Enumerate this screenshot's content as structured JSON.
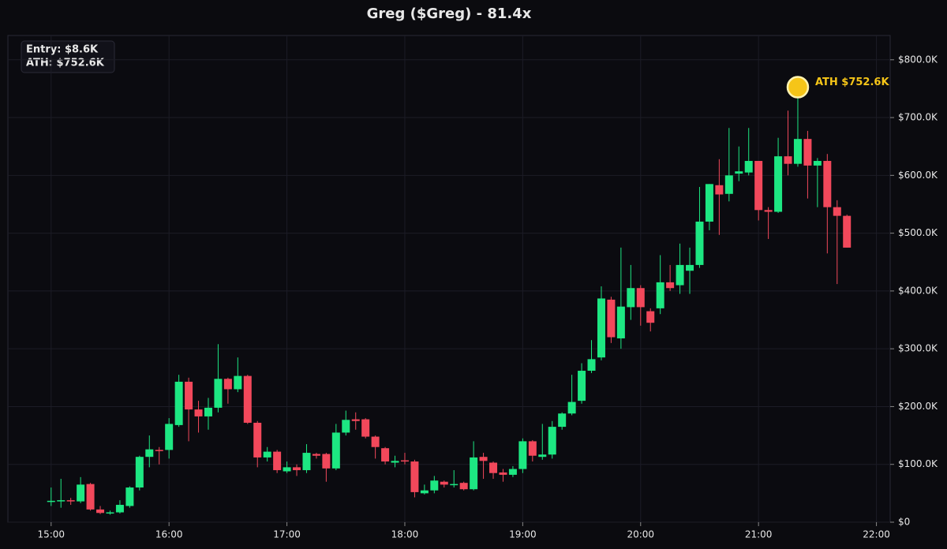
{
  "chart_data": {
    "type": "candlestick",
    "title": "Greg ($Greg) - 81.4x",
    "info": [
      "Entry: $8.6K",
      "ATH: $752.6K"
    ],
    "up_color": "#1de782",
    "down_color": "#f2485b",
    "grid": true,
    "x": [
      "15:00",
      "15:05",
      "15:10",
      "15:15",
      "15:20",
      "15:25",
      "15:30",
      "15:35",
      "15:40",
      "15:45",
      "15:50",
      "15:55",
      "16:00",
      "16:05",
      "16:10",
      "16:15",
      "16:20",
      "16:25",
      "16:30",
      "16:35",
      "16:40",
      "16:45",
      "16:50",
      "16:55",
      "17:00",
      "17:05",
      "17:10",
      "17:15",
      "17:20",
      "17:25",
      "17:30",
      "17:35",
      "17:40",
      "17:45",
      "17:50",
      "17:55",
      "18:00",
      "18:05",
      "18:10",
      "18:15",
      "18:20",
      "18:25",
      "18:30",
      "18:35",
      "18:40",
      "18:45",
      "18:50",
      "18:55",
      "19:00",
      "19:05",
      "19:10",
      "19:15",
      "19:20",
      "19:25",
      "19:30",
      "19:35",
      "19:40",
      "19:45",
      "19:50",
      "19:55",
      "20:00",
      "20:05",
      "20:10",
      "20:15",
      "20:20",
      "20:25",
      "20:30",
      "20:35",
      "20:40",
      "20:45",
      "20:50",
      "20:55",
      "21:00",
      "21:05",
      "21:10",
      "21:15",
      "21:20",
      "21:25",
      "21:30",
      "21:35",
      "21:40",
      "21:45"
    ],
    "open": [
      35000,
      36000,
      38000,
      36000,
      66000,
      22000,
      15000,
      17000,
      28000,
      60000,
      113000,
      125000,
      125000,
      168000,
      243000,
      195000,
      183000,
      198000,
      248000,
      230000,
      253000,
      172000,
      112000,
      122000,
      88000,
      95000,
      90000,
      118000,
      118000,
      93000,
      155000,
      178000,
      178000,
      148000,
      128000,
      103000,
      107000,
      105000,
      50000,
      55000,
      70000,
      64000,
      68000,
      57000,
      113000,
      103000,
      86000,
      82000,
      92000,
      140000,
      113000,
      117000,
      165000,
      188000,
      210000,
      262000,
      285000,
      385000,
      318000,
      372000,
      405000,
      365000,
      370000,
      415000,
      410000,
      435000,
      445000,
      520000,
      583000,
      568000,
      603000,
      605000,
      625000,
      540000,
      537000,
      633000,
      620000,
      663000,
      617000,
      625000,
      545000,
      530000
    ],
    "high": [
      60000,
      75000,
      42000,
      78000,
      68000,
      28000,
      20000,
      38000,
      62000,
      115000,
      150000,
      130000,
      180000,
      255000,
      250000,
      210000,
      215000,
      308000,
      250000,
      285000,
      255000,
      175000,
      130000,
      125000,
      105000,
      100000,
      135000,
      120000,
      120000,
      170000,
      193000,
      190000,
      180000,
      150000,
      130000,
      115000,
      120000,
      108000,
      65000,
      80000,
      72000,
      90000,
      70000,
      140000,
      120000,
      105000,
      92000,
      97000,
      145000,
      142000,
      170000,
      175000,
      190000,
      255000,
      275000,
      315000,
      408000,
      390000,
      475000,
      445000,
      410000,
      370000,
      462000,
      445000,
      482000,
      475000,
      580000,
      585000,
      628000,
      682000,
      650000,
      682000,
      625000,
      545000,
      665000,
      712000,
      752600,
      677000,
      630000,
      637000,
      557000,
      532000
    ],
    "low": [
      28000,
      25000,
      30000,
      33000,
      20000,
      14000,
      13000,
      15000,
      25000,
      55000,
      95000,
      100000,
      110000,
      165000,
      140000,
      155000,
      160000,
      190000,
      205000,
      225000,
      170000,
      95000,
      105000,
      85000,
      85000,
      80000,
      85000,
      110000,
      70000,
      90000,
      150000,
      160000,
      145000,
      110000,
      100000,
      95000,
      100000,
      43000,
      48000,
      50000,
      60000,
      60000,
      55000,
      55000,
      75000,
      75000,
      70000,
      78000,
      85000,
      105000,
      108000,
      110000,
      160000,
      185000,
      205000,
      258000,
      280000,
      310000,
      300000,
      350000,
      340000,
      330000,
      360000,
      400000,
      395000,
      395000,
      440000,
      505000,
      497000,
      555000,
      590000,
      600000,
      522000,
      490000,
      535000,
      600000,
      615000,
      560000,
      545000,
      465000,
      412000,
      475000
    ],
    "close": [
      37000,
      38000,
      36000,
      65000,
      22000,
      16000,
      17000,
      30000,
      60000,
      113000,
      126000,
      123000,
      170000,
      243000,
      195000,
      183000,
      198000,
      248000,
      230000,
      253000,
      172000,
      112000,
      122000,
      90000,
      95000,
      90000,
      120000,
      115000,
      93000,
      155000,
      177000,
      175000,
      148000,
      130000,
      105000,
      106000,
      106000,
      52000,
      55000,
      72000,
      65000,
      66000,
      57000,
      112000,
      106000,
      85000,
      82000,
      92000,
      140000,
      115000,
      117000,
      165000,
      188000,
      208000,
      262000,
      282000,
      387000,
      320000,
      373000,
      405000,
      372000,
      345000,
      415000,
      405000,
      445000,
      445000,
      520000,
      585000,
      567000,
      600000,
      607000,
      625000,
      540000,
      537000,
      633000,
      620000,
      663000,
      617000,
      625000,
      545000,
      530000,
      475000
    ],
    "xlim": [
      "14:38",
      "22:07"
    ],
    "xticks": [
      "15:00",
      "16:00",
      "17:00",
      "18:00",
      "19:00",
      "20:00",
      "21:00",
      "22:00"
    ],
    "ylim": [
      0,
      842000
    ],
    "yticks": [
      {
        "value": 0,
        "label": "$0"
      },
      {
        "value": 100000,
        "label": "$100.0K"
      },
      {
        "value": 200000,
        "label": "$200.0K"
      },
      {
        "value": 300000,
        "label": "$300.0K"
      },
      {
        "value": 400000,
        "label": "$400.0K"
      },
      {
        "value": 500000,
        "label": "$500.0K"
      },
      {
        "value": 600000,
        "label": "$600.0K"
      },
      {
        "value": 700000,
        "label": "$700.0K"
      },
      {
        "value": 800000,
        "label": "$800.0K"
      }
    ],
    "annotations": [
      {
        "text": "ATH $752.6K",
        "x": "21:20",
        "y": 752600,
        "color": "#f5c518"
      }
    ]
  }
}
